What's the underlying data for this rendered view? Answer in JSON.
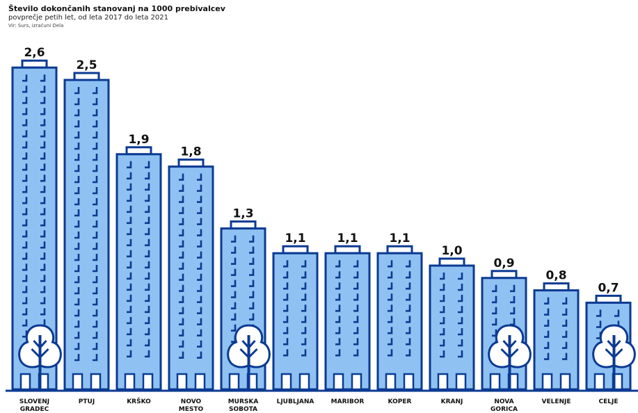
{
  "header": {
    "title": "Število dokončanih stanovanj na 1000 prebivalcev",
    "subtitle": "povprečje petih let, od leta 2017 do leta 2021",
    "source": "Vir: Surs, izračuni Dela"
  },
  "colors": {
    "building_fill": "#8fc2f2",
    "building_stroke": "#0b3a92",
    "window": "#0b3a92",
    "tree_fill": "#ffffff"
  },
  "chart_data": {
    "type": "bar",
    "title": "Število dokončanih stanovanj na 1000 prebivalcev",
    "subtitle": "povprečje petih let, od leta 2017 do leta 2021",
    "xlabel": "",
    "ylabel": "",
    "ylim": [
      0,
      2.6
    ],
    "grid": false,
    "categories": [
      [
        "SLOVENJ",
        "GRADEC"
      ],
      [
        "PTUJ"
      ],
      [
        "KRŠKO"
      ],
      [
        "NOVO",
        "MESTO"
      ],
      [
        "MURSKA",
        "SOBOTA"
      ],
      [
        "LJUBLJANA"
      ],
      [
        "MARIBOR"
      ],
      [
        "KOPER"
      ],
      [
        "KRANJ"
      ],
      [
        "NOVA",
        "GORICA"
      ],
      [
        "VELENJE"
      ],
      [
        "CELJE"
      ]
    ],
    "values": [
      2.6,
      2.5,
      1.9,
      1.8,
      1.3,
      1.1,
      1.1,
      1.1,
      1.0,
      0.9,
      0.8,
      0.7
    ],
    "value_labels": [
      "2,6",
      "2,5",
      "1,9",
      "1,8",
      "1,3",
      "1,1",
      "1,1",
      "1,1",
      "1,0",
      "0,9",
      "0,8",
      "0,7"
    ],
    "trees_at_index": [
      0,
      4,
      9,
      11
    ]
  }
}
